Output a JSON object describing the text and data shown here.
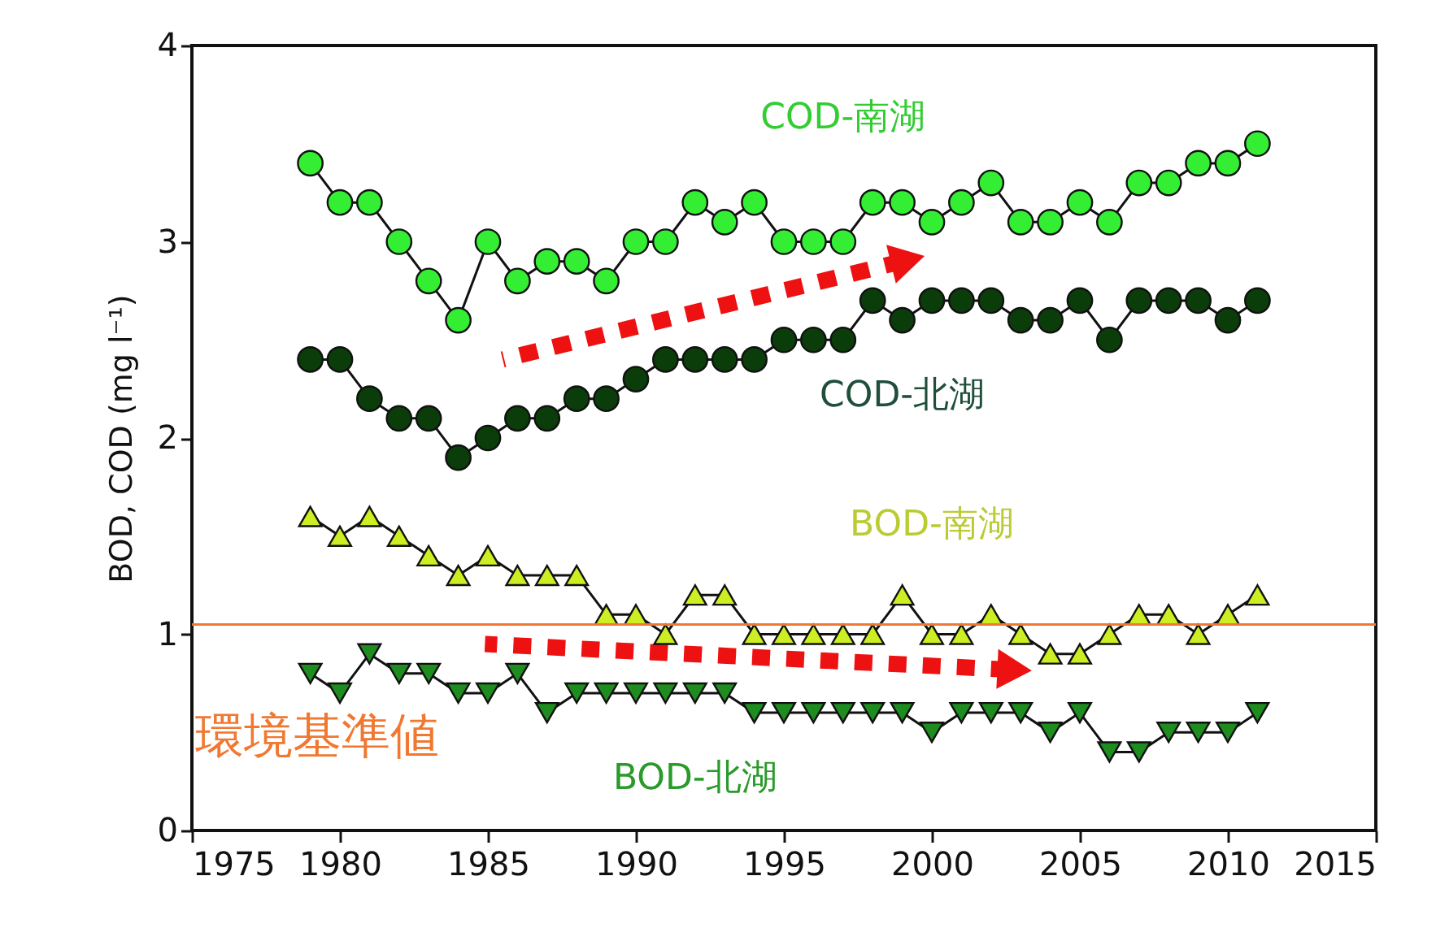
{
  "chart_data": {
    "type": "line",
    "ylabel": "BOD, COD (mg l⁻¹)",
    "x": [
      1979,
      1980,
      1981,
      1982,
      1983,
      1984,
      1985,
      1986,
      1987,
      1988,
      1989,
      1990,
      1991,
      1992,
      1993,
      1994,
      1995,
      1996,
      1997,
      1998,
      1999,
      2000,
      2001,
      2002,
      2003,
      2004,
      2005,
      2006,
      2007,
      2008,
      2009,
      2010,
      2011
    ],
    "series": [
      {
        "name": "COD-南湖",
        "color": "#33ee33",
        "marker": "circle",
        "values": [
          3.4,
          3.2,
          3.2,
          3.0,
          2.8,
          2.6,
          3.0,
          2.8,
          2.9,
          2.9,
          2.8,
          3.0,
          3.0,
          3.2,
          3.1,
          3.2,
          3.0,
          3.0,
          3.0,
          3.2,
          3.2,
          3.1,
          3.2,
          3.3,
          3.1,
          3.1,
          3.2,
          3.1,
          3.3,
          3.3,
          3.4,
          3.4,
          3.5
        ]
      },
      {
        "name": "COD-北湖",
        "color": "#0a3d0a",
        "marker": "circle",
        "values": [
          2.4,
          2.4,
          2.2,
          2.1,
          2.1,
          1.9,
          2.0,
          2.1,
          2.1,
          2.2,
          2.2,
          2.3,
          2.4,
          2.4,
          2.4,
          2.4,
          2.5,
          2.5,
          2.5,
          2.7,
          2.6,
          2.7,
          2.7,
          2.7,
          2.6,
          2.6,
          2.7,
          2.5,
          2.7,
          2.7,
          2.7,
          2.6,
          2.7
        ]
      },
      {
        "name": "BOD-南湖",
        "color": "#ccee22",
        "marker": "triangle",
        "values": [
          1.6,
          1.5,
          1.6,
          1.5,
          1.4,
          1.3,
          1.4,
          1.3,
          1.3,
          1.3,
          1.1,
          1.1,
          1.0,
          1.2,
          1.2,
          1.0,
          1.0,
          1.0,
          1.0,
          1.0,
          1.2,
          1.0,
          1.0,
          1.1,
          1.0,
          0.9,
          0.9,
          1.0,
          1.1,
          1.1,
          1.0,
          1.1,
          1.2
        ]
      },
      {
        "name": "BOD-北湖",
        "color": "#1e8c1e",
        "marker": "triangle-down",
        "values": [
          0.8,
          0.7,
          0.9,
          0.8,
          0.8,
          0.7,
          0.7,
          0.8,
          0.6,
          0.7,
          0.7,
          0.7,
          0.7,
          0.7,
          0.7,
          0.6,
          0.6,
          0.6,
          0.6,
          0.6,
          0.6,
          0.5,
          0.6,
          0.6,
          0.6,
          0.5,
          0.6,
          0.4,
          0.4,
          0.5,
          0.5,
          0.5,
          0.6
        ]
      },
      {
        "type": "line",
        "color": "#ee1111",
        "marker": "triangle",
        "line_style": "dotted",
        "x": [
          1985.5,
          1999.0
        ],
        "values": [
          2.4,
          2.9
        ]
      },
      {
        "type": "line",
        "color": "#ee1111",
        "marker": "triangle",
        "line_style": "dotted",
        "x": [
          1984.9,
          2002.6
        ],
        "values": [
          0.95,
          0.82
        ]
      }
    ],
    "xlim": [
      1975,
      2015
    ],
    "xticks": [
      1975,
      1980,
      1985,
      1990,
      1995,
      2000,
      2005,
      2010,
      2015
    ],
    "ylim": [
      0,
      4
    ],
    "yticks": [
      0,
      1,
      2,
      3,
      4
    ],
    "ref_lines": [
      {
        "axis": "y",
        "value": 1.05,
        "label": "環境基準値",
        "color": "#f07830"
      }
    ],
    "grid": false,
    "legend": false
  }
}
